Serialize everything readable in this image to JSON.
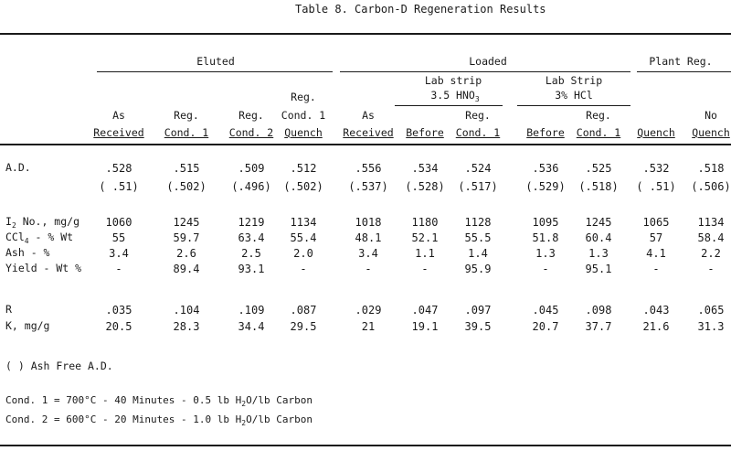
{
  "title": "Table 8.  Carbon-D Regeneration Results",
  "groups": {
    "eluted": "Eluted",
    "loaded": "Loaded",
    "plant": "Plant Reg."
  },
  "subgroups": {
    "hno3_line1": "Lab strip",
    "hno3_line2": "3.5 HNO",
    "hno3_sub": "3",
    "hcl_line1": "Lab Strip",
    "hcl_line2": "3% HCl"
  },
  "columns": [
    {
      "l1": "",
      "l2": "As",
      "l3": "Received"
    },
    {
      "l1": "",
      "l2": "Reg.",
      "l3": "Cond. 1"
    },
    {
      "l1": "",
      "l2": "Reg.",
      "l3": "Cond. 2"
    },
    {
      "l1": "Reg.",
      "l2": "Cond. 1",
      "l3": "Quench"
    },
    {
      "l1": "",
      "l2": "As",
      "l3": "Received"
    },
    {
      "l1": "",
      "l2": "",
      "l3": "Before"
    },
    {
      "l1": "",
      "l2": "Reg.",
      "l3": "Cond. 1"
    },
    {
      "l1": "",
      "l2": "",
      "l3": "Before"
    },
    {
      "l1": "",
      "l2": "Reg.",
      "l3": "Cond. 1"
    },
    {
      "l1": "",
      "l2": "",
      "l3": "Quench"
    },
    {
      "l1": "",
      "l2": "No",
      "l3": "Quench"
    }
  ],
  "rows": {
    "ad": {
      "label": "A.D.",
      "values": [
        ".528",
        ".515",
        ".509",
        ".512",
        ".556",
        ".534",
        ".524",
        ".536",
        ".525",
        ".532",
        ".518"
      ],
      "ash_free": [
        "( .51)",
        "(.502)",
        "(.496)",
        "(.502)",
        "(.537)",
        "(.528)",
        "(.517)",
        "(.529)",
        "(.518)",
        "( .51)",
        "(.506)"
      ]
    },
    "iodine": {
      "label_pre": "I",
      "label_sub": "2",
      "label_post": " No., mg/g",
      "values": [
        "1060",
        "1245",
        "1219",
        "1134",
        "1018",
        "1180",
        "1128",
        "1095",
        "1245",
        "1065",
        "1134"
      ]
    },
    "ccl4": {
      "label_pre": "CCl",
      "label_sub": "4",
      "label_post": " - % Wt",
      "values": [
        "55",
        "59.7",
        "63.4",
        "55.4",
        "48.1",
        "52.1",
        "55.5",
        "51.8",
        "60.4",
        "57",
        "58.4"
      ]
    },
    "ash": {
      "label": "Ash - %",
      "values": [
        "3.4",
        "2.6",
        "2.5",
        "2.0",
        "3.4",
        "1.1",
        "1.4",
        "1.3",
        "1.3",
        "4.1",
        "2.2"
      ]
    },
    "yield": {
      "label": "Yield - Wt %",
      "values": [
        "-",
        "89.4",
        "93.1",
        "-",
        "-",
        "-",
        "95.9",
        "-",
        "95.1",
        "-",
        "-"
      ]
    },
    "r": {
      "label": "R",
      "values": [
        ".035",
        ".104",
        ".109",
        ".087",
        ".029",
        ".047",
        ".097",
        ".045",
        ".098",
        ".043",
        ".065"
      ]
    },
    "k": {
      "label": "K, mg/g",
      "values": [
        "20.5",
        "28.3",
        "34.4",
        "29.5",
        "21",
        "19.1",
        "39.5",
        "20.7",
        "37.7",
        "21.6",
        "31.3"
      ]
    }
  },
  "notes": {
    "ash_free": "( ) Ash Free A.D.",
    "cond1_pre": "Cond. 1 = 700°C - 40 Minutes - 0.5 lb H",
    "cond1_post": "O/lb Carbon",
    "cond2_pre": "Cond. 2 = 600°C - 20 Minutes - 1.0 lb H",
    "cond2_post": "O/lb Carbon",
    "h2o_sub": "2"
  }
}
